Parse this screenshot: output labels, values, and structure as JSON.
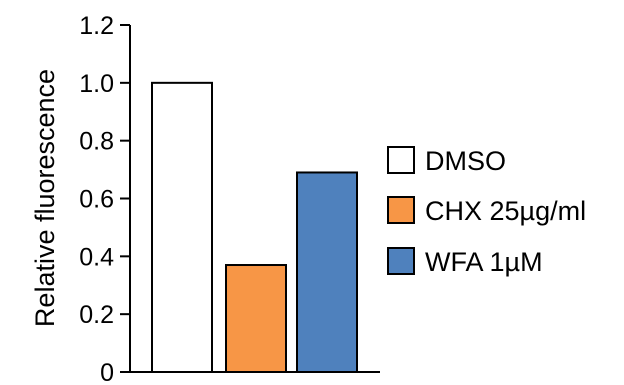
{
  "chart_data": {
    "type": "bar",
    "title": "",
    "xlabel": "",
    "ylabel": "Relative fluorescence",
    "ylim": [
      0,
      1.2
    ],
    "yticks": [
      "0",
      "0.2",
      "0.4",
      "0.6",
      "0.8",
      "1.0",
      "1.2"
    ],
    "categories": [
      "DMSO",
      "CHX 25µg/ml",
      "WFA 1µM"
    ],
    "values": [
      1.0,
      0.37,
      0.69
    ],
    "colors": [
      "#ffffff",
      "#f79646",
      "#4f81bd"
    ],
    "legend": {
      "placement": "right",
      "entries": [
        "DMSO",
        "CHX 25µg/ml",
        "WFA 1µM"
      ]
    },
    "grid": false
  }
}
